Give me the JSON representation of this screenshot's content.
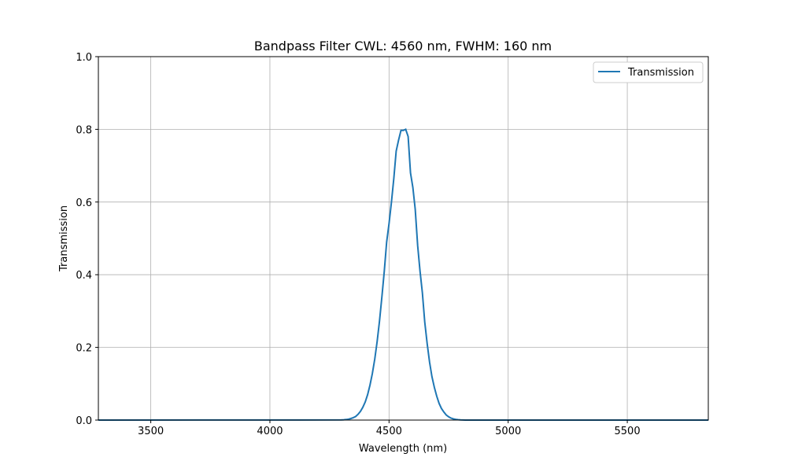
{
  "chart_data": {
    "type": "line",
    "title": "Bandpass Filter CWL: 4560 nm, FWHM: 160 nm",
    "xlabel": "Wavelength (nm)",
    "ylabel": "Transmission",
    "xlim": [
      3280,
      5840
    ],
    "ylim": [
      0,
      1.0
    ],
    "xticks": [
      3500,
      4000,
      4500,
      5000,
      5500
    ],
    "yticks": [
      "0.0",
      "0.2",
      "0.4",
      "0.6",
      "0.8",
      "1.0"
    ],
    "grid": true,
    "legend_placement": "top-right",
    "series": [
      {
        "name": "Transmission",
        "color": "#1f77b4",
        "x": [
          3280,
          4300,
          4310,
          4320,
          4330,
          4340,
          4350,
          4360,
          4370,
          4380,
          4390,
          4400,
          4410,
          4420,
          4430,
          4440,
          4450,
          4460,
          4470,
          4480,
          4490,
          4500,
          4510,
          4520,
          4530,
          4540,
          4550,
          4560,
          4570,
          4580,
          4590,
          4600,
          4610,
          4620,
          4630,
          4640,
          4650,
          4660,
          4670,
          4680,
          4690,
          4700,
          4710,
          4720,
          4730,
          4740,
          4750,
          4760,
          4770,
          4780,
          4790,
          4800,
          4820,
          5840
        ],
        "y": [
          0,
          0.0005,
          0.0009,
          0.0016,
          0.0026,
          0.0043,
          0.0068,
          0.01,
          0.016,
          0.024,
          0.035,
          0.05,
          0.07,
          0.096,
          0.128,
          0.168,
          0.216,
          0.272,
          0.34,
          0.41,
          0.49,
          0.54,
          0.6,
          0.665,
          0.74,
          0.77,
          0.797,
          0.797,
          0.8,
          0.78,
          0.68,
          0.64,
          0.58,
          0.48,
          0.41,
          0.35,
          0.27,
          0.21,
          0.16,
          0.12,
          0.09,
          0.066,
          0.046,
          0.032,
          0.022,
          0.014,
          0.009,
          0.0055,
          0.0033,
          0.002,
          0.001,
          0.0005,
          0,
          0
        ]
      }
    ]
  }
}
